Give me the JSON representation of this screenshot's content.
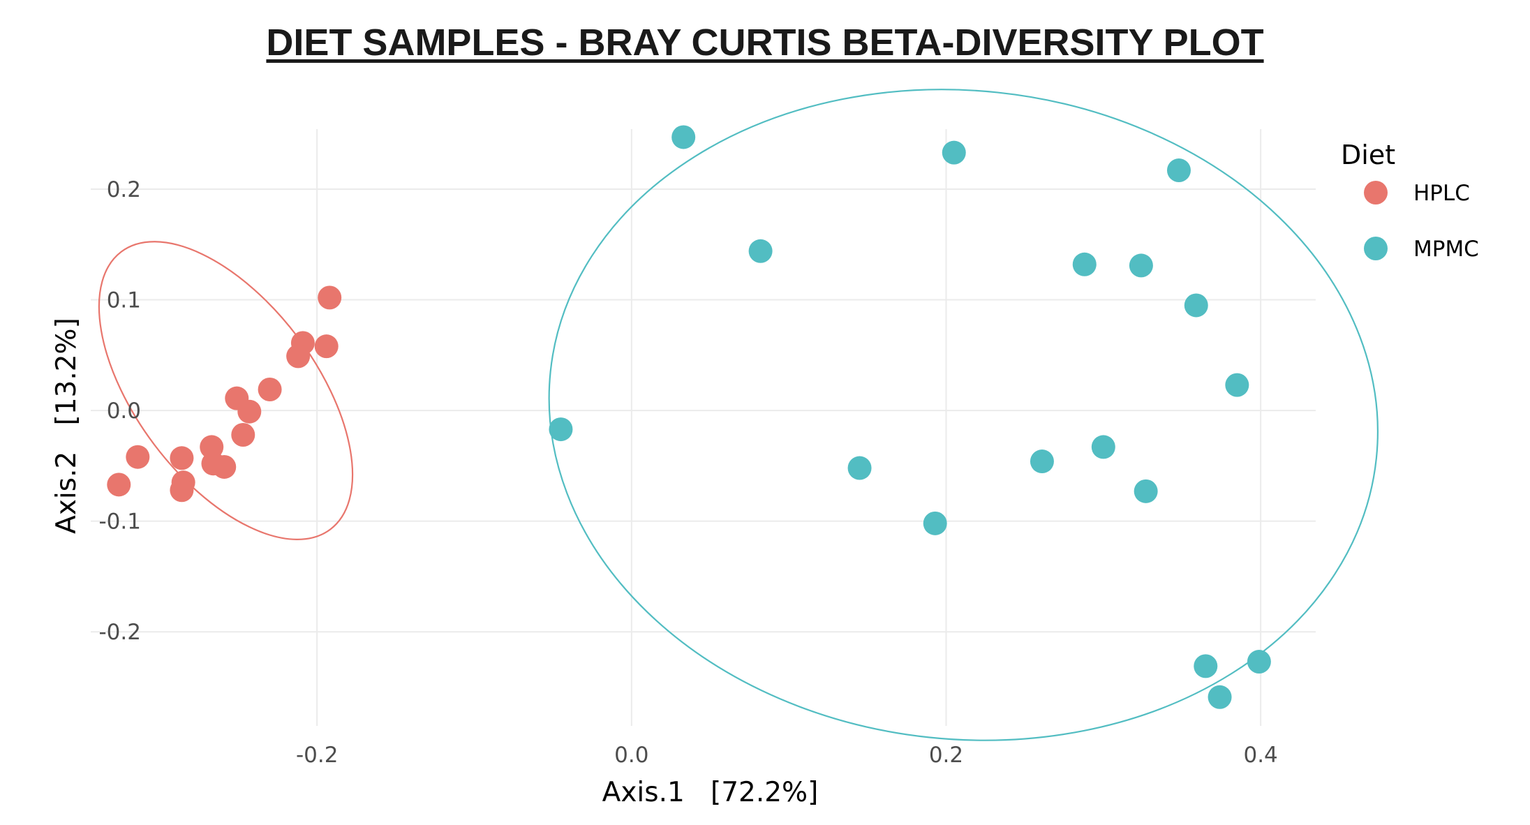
{
  "chart_data": {
    "type": "scatter",
    "title": "DIET SAMPLES - BRAY CURTIS BETA-DIVERSITY PLOT",
    "xlabel": "Axis.1   [72.2%]",
    "ylabel": "Axis.2   [13.2%]",
    "xlim": [
      -0.335,
      0.435
    ],
    "ylim": [
      -0.285,
      0.27
    ],
    "x_ticks": [
      -0.2,
      0.0,
      0.2,
      0.4
    ],
    "x_tick_labels": [
      "-0.2",
      "0.0",
      "0.2",
      "0.4"
    ],
    "y_ticks": [
      -0.2,
      -0.1,
      0.0,
      0.1,
      0.2
    ],
    "y_tick_labels": [
      "-0.2",
      "-0.1",
      "0.0",
      "0.1",
      "0.2"
    ],
    "grid": true,
    "legend": {
      "title": "Diet",
      "position": "right"
    },
    "series": [
      {
        "name": "HPLC",
        "color": "#E8766D",
        "points": [
          [
            -0.192,
            0.102
          ],
          [
            -0.209,
            0.061
          ],
          [
            -0.194,
            0.058
          ],
          [
            -0.212,
            0.049
          ],
          [
            -0.23,
            0.019
          ],
          [
            -0.251,
            0.011
          ],
          [
            -0.243,
            -0.001
          ],
          [
            -0.247,
            -0.022
          ],
          [
            -0.267,
            -0.033
          ],
          [
            -0.286,
            -0.043
          ],
          [
            -0.266,
            -0.048
          ],
          [
            -0.259,
            -0.051
          ],
          [
            -0.314,
            -0.042
          ],
          [
            -0.285,
            -0.065
          ],
          [
            -0.286,
            -0.072
          ],
          [
            -0.326,
            -0.067
          ]
        ],
        "ellipse": {
          "cx": -0.258,
          "cy": 0.018,
          "rx": 0.057,
          "ry": 0.157,
          "angle": 37
        }
      },
      {
        "name": "MPMC",
        "color": "#52BDC2",
        "points": [
          [
            0.033,
            0.247
          ],
          [
            0.205,
            0.233
          ],
          [
            0.348,
            0.217
          ],
          [
            0.082,
            0.144
          ],
          [
            0.288,
            0.132
          ],
          [
            0.324,
            0.131
          ],
          [
            0.359,
            0.095
          ],
          [
            0.385,
            0.023
          ],
          [
            -0.045,
            -0.017
          ],
          [
            0.145,
            -0.052
          ],
          [
            0.261,
            -0.046
          ],
          [
            0.3,
            -0.033
          ],
          [
            0.327,
            -0.073
          ],
          [
            0.193,
            -0.102
          ],
          [
            0.365,
            -0.231
          ],
          [
            0.399,
            -0.227
          ],
          [
            0.374,
            -0.259
          ]
        ],
        "ellipse": {
          "cx": 0.211,
          "cy": -0.004,
          "rx": 0.264,
          "ry": 0.293,
          "angle": -6
        }
      }
    ]
  }
}
